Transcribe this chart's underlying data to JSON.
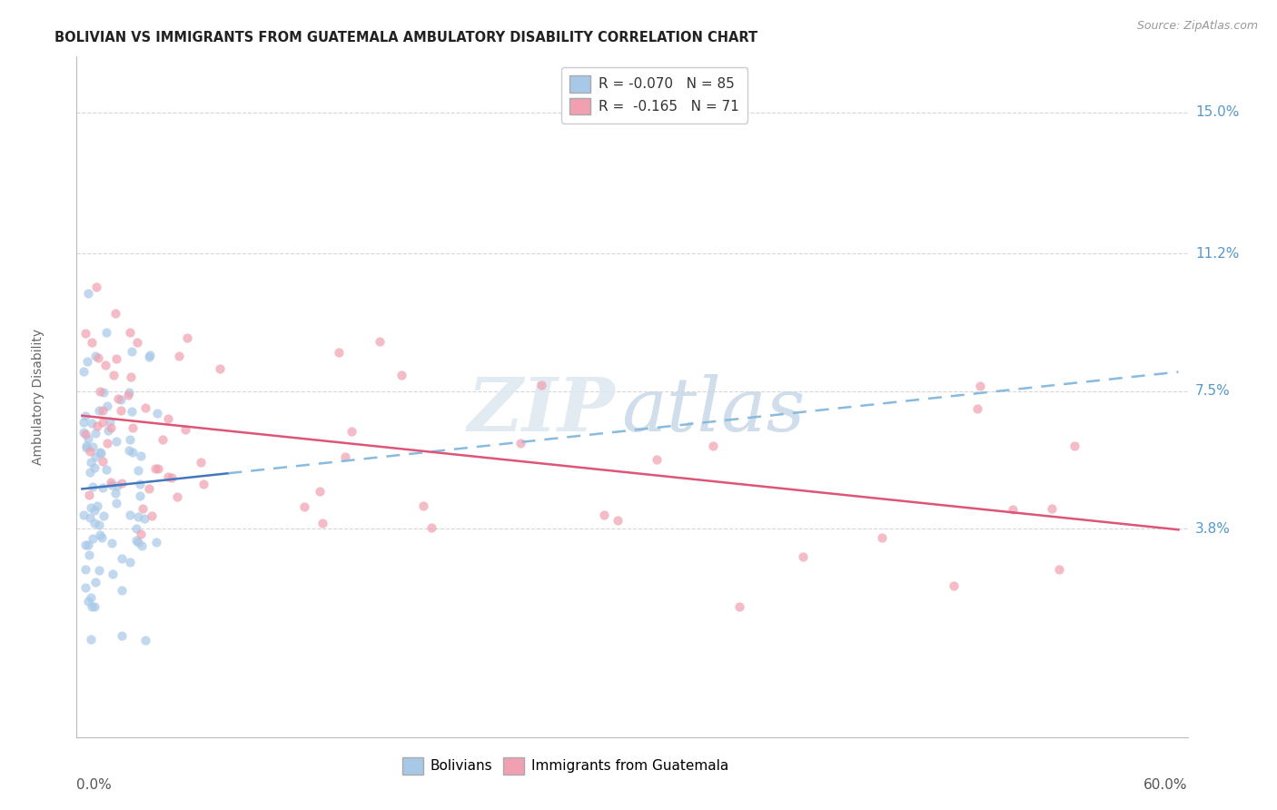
{
  "title": "BOLIVIAN VS IMMIGRANTS FROM GUATEMALA AMBULATORY DISABILITY CORRELATION CHART",
  "source": "Source: ZipAtlas.com",
  "ylabel": "Ambulatory Disability",
  "ytick_labels": [
    "3.8%",
    "7.5%",
    "11.2%",
    "15.0%"
  ],
  "ytick_values": [
    3.8,
    7.5,
    11.2,
    15.0
  ],
  "xmin": 0.0,
  "xmax": 60.0,
  "ymin": 0.0,
  "ymax": 16.5,
  "watermark_zip": "ZIP",
  "watermark_atlas": "atlas",
  "bolivians_color": "#a8c8e8",
  "bolivia_edge_color": "#7aaad0",
  "guatemala_color": "#f0a0b0",
  "guatemala_edge_color": "#e07888",
  "trend_bolivian_color": "#4477bb",
  "trend_guatemala_color": "#dd5577",
  "trend_bolivian_dashed_color": "#88bbdd",
  "background_color": "#ffffff",
  "grid_color": "#cccccc",
  "title_color": "#222222",
  "axis_label_color": "#666666",
  "right_tick_color": "#5599cc",
  "source_color": "#999999",
  "xlabel_color": "#555555",
  "bol_solid_xend": 8.0,
  "scatter_size": 55,
  "scatter_alpha": 0.7,
  "trend_lw": 1.8,
  "legend_label_blue": "R = -0.070   N = 85",
  "legend_label_pink": "R =  -0.165   N = 71",
  "bottom_legend_labels": [
    "Bolivians",
    "Immigrants from Guatemala"
  ]
}
